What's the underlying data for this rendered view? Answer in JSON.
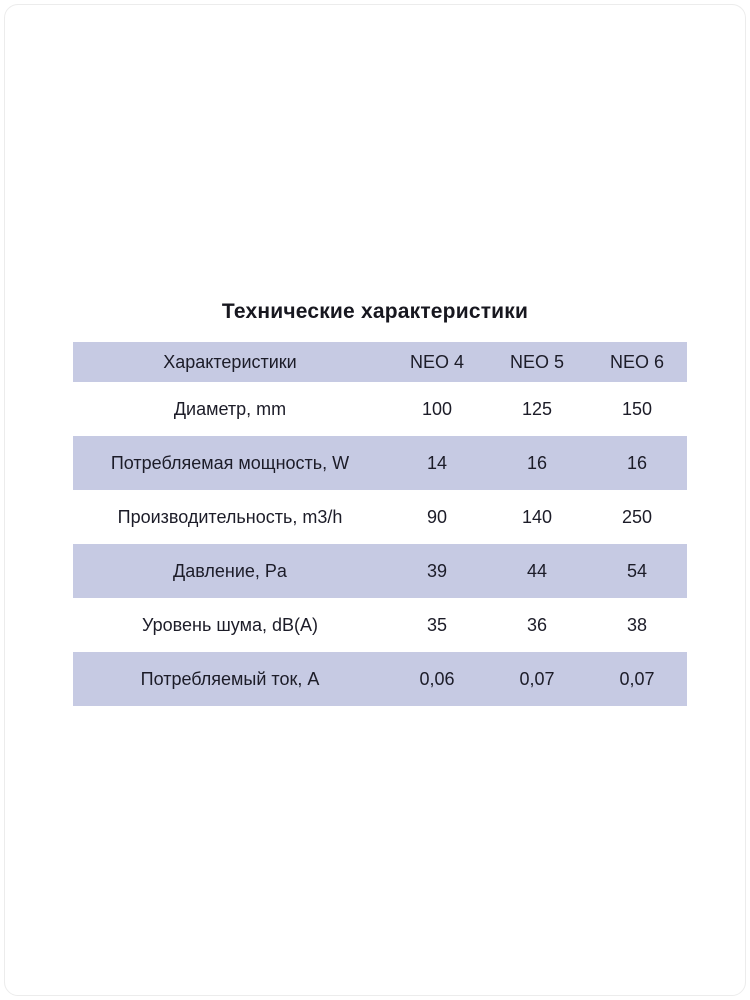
{
  "page": {
    "title": "Технические характеристики"
  },
  "table": {
    "columns": [
      "Характеристики",
      "NEO 4",
      "NEO 5",
      "NEO 6"
    ],
    "rows": [
      {
        "label": "Диаметр, mm",
        "values": [
          "100",
          "125",
          "150"
        ]
      },
      {
        "label": "Потребляемая мощность, W",
        "values": [
          "14",
          "16",
          "16"
        ]
      },
      {
        "label": "Производительность, m3/h",
        "values": [
          "90",
          "140",
          "250"
        ]
      },
      {
        "label": "Давление, Pa",
        "values": [
          "39",
          "44",
          "54"
        ]
      },
      {
        "label": "Уровень шума, dB(A)",
        "values": [
          "35",
          "36",
          "38"
        ]
      },
      {
        "label": "Потребляемый ток, А",
        "values": [
          "0,06",
          "0,07",
          "0,07"
        ]
      }
    ],
    "colors": {
      "band_row": "#c6cae3",
      "plain_row": "#ffffff",
      "text": "#1c1c28"
    }
  }
}
